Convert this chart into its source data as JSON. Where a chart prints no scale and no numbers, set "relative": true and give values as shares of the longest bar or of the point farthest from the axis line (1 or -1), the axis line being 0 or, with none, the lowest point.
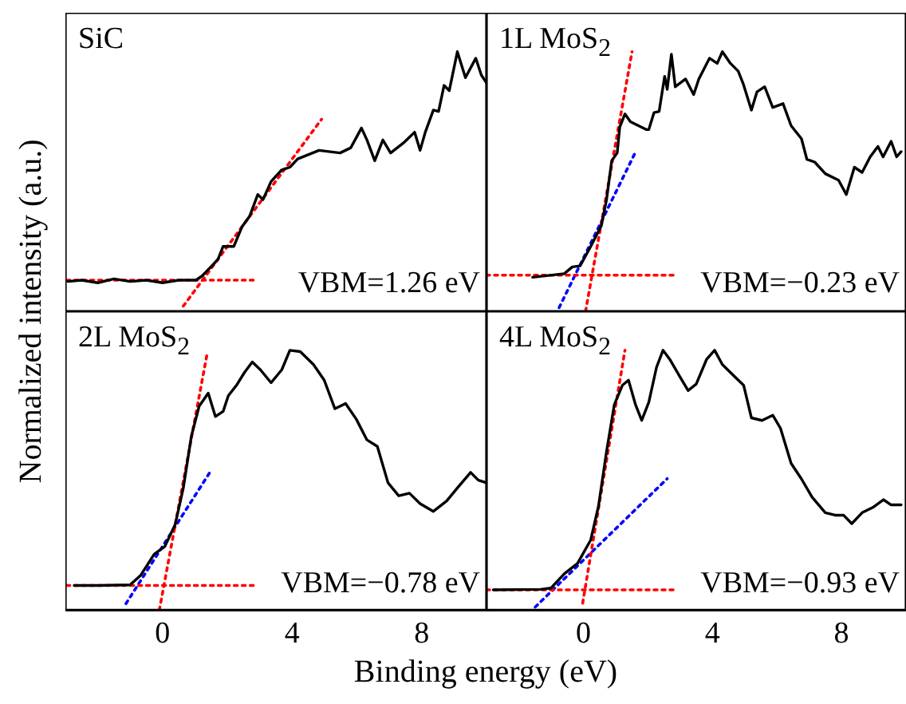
{
  "chart_data": [
    {
      "type": "line",
      "title": "SiC",
      "ylabel": "Normalized intensity (a.u.)",
      "annotations": [
        "VBM=1.26 eV"
      ],
      "relative": true,
      "xlim": [
        -3,
        10
      ],
      "xticks": [
        0,
        4,
        8
      ],
      "tick_labels": false,
      "series": [
        {
          "color": "#000000",
          "x": [
            -2.92,
            -2.5,
            -2.0,
            -1.5,
            -1.0,
            -0.5,
            0,
            0.5,
            1.03,
            1.22,
            1.71,
            1.87,
            2.2,
            2.45,
            2.69,
            2.94,
            3.1,
            3.35,
            3.68,
            3.93,
            4.17,
            4.83,
            5.48,
            5.81,
            6.14,
            6.31,
            6.55,
            6.8,
            7.04,
            7.45,
            7.78,
            7.95,
            8.11,
            8.36,
            8.52,
            8.69,
            8.85,
            9.1,
            9.35,
            9.67,
            9.84,
            10.0
          ],
          "values": [
            0.115,
            0.12,
            0.11,
            0.125,
            0.115,
            0.12,
            0.11,
            0.12,
            0.12,
            0.136,
            0.2,
            0.25,
            0.25,
            0.325,
            0.367,
            0.45,
            0.43,
            0.5,
            0.545,
            0.555,
            0.587,
            0.62,
            0.61,
            0.63,
            0.706,
            0.66,
            0.58,
            0.66,
            0.61,
            0.65,
            0.69,
            0.62,
            0.69,
            0.775,
            0.77,
            0.87,
            0.85,
            1.0,
            0.9,
            0.975,
            0.91,
            0.88
          ]
        },
        {
          "color": "#ff0000",
          "line_style": "dotted",
          "x": [
            -2.96,
            2.94
          ],
          "values": [
            0.12,
            0.12
          ]
        },
        {
          "color": "#ff0000",
          "line_style": "dotted",
          "x": [
            0.64,
            4.91
          ],
          "values": [
            0.02,
            0.74
          ]
        }
      ]
    },
    {
      "type": "line",
      "title": "1L MoS$_{2}$",
      "annotations": [
        "VBM=−0.23 eV"
      ],
      "relative": true,
      "xlim": [
        -3,
        10
      ],
      "xticks": [
        0,
        4,
        8
      ],
      "tick_labels": false,
      "series": [
        {
          "color": "#000000",
          "x": [
            -1.57,
            -0.59,
            -0.34,
            -0.1,
            0.23,
            0.56,
            0.72,
            0.88,
            1.05,
            1.13,
            1.29,
            1.46,
            1.95,
            2.03,
            2.19,
            2.35,
            2.52,
            2.6,
            2.73,
            2.85,
            3.17,
            3.42,
            3.58,
            3.91,
            4.15,
            4.31,
            4.56,
            4.8,
            4.96,
            5.21,
            5.38,
            5.62,
            5.87,
            6.19,
            6.44,
            6.76,
            6.93,
            7.17,
            7.5,
            7.91,
            8.15,
            8.4,
            8.64,
            8.89,
            9.13,
            9.29,
            9.54,
            9.71,
            9.85
          ],
          "values": [
            0.131,
            0.145,
            0.171,
            0.175,
            0.25,
            0.33,
            0.43,
            0.58,
            0.61,
            0.71,
            0.76,
            0.73,
            0.7,
            0.7,
            0.765,
            0.77,
            0.905,
            0.855,
            0.99,
            0.865,
            0.895,
            0.835,
            0.895,
            0.975,
            0.955,
            1.0,
            0.955,
            0.925,
            0.875,
            0.775,
            0.845,
            0.865,
            0.785,
            0.8,
            0.715,
            0.665,
            0.585,
            0.575,
            0.53,
            0.505,
            0.45,
            0.555,
            0.535,
            0.595,
            0.635,
            0.595,
            0.655,
            0.595,
            0.615
          ]
        },
        {
          "color": "#ff0000",
          "line_style": "dotted",
          "x": [
            -3.0,
            2.84
          ],
          "values": [
            0.139,
            0.139
          ]
        },
        {
          "color": "#ff0000",
          "line_style": "dotted",
          "x": [
            0.07,
            1.51
          ],
          "values": [
            0.0,
            1.0
          ]
        },
        {
          "color": "#0000ff",
          "line_style": "dotted",
          "x": [
            -0.75,
            1.62
          ],
          "values": [
            0.014,
            0.614
          ]
        }
      ]
    },
    {
      "type": "line",
      "title": "2L MoS$_{2}$",
      "xlabel": "Binding energy (eV)",
      "annotations": [
        "VBM=−0.78 eV"
      ],
      "relative": true,
      "xlim": [
        -3,
        10
      ],
      "xticks": [
        0,
        4,
        8
      ],
      "tick_labels": "x",
      "series": [
        {
          "color": "#000000",
          "x": [
            -2.73,
            -2.0,
            -1.0,
            -0.67,
            -0.26,
            0.07,
            0.39,
            0.64,
            0.89,
            1.13,
            1.41,
            1.63,
            1.87,
            2.03,
            2.28,
            2.53,
            2.77,
            3.02,
            3.35,
            3.68,
            3.93,
            4.25,
            4.66,
            4.99,
            5.32,
            5.65,
            5.98,
            6.31,
            6.63,
            6.96,
            7.29,
            7.62,
            7.95,
            8.36,
            8.77,
            9.1,
            9.51,
            9.75,
            10.0
          ],
          "values": [
            0.095,
            0.095,
            0.097,
            0.135,
            0.215,
            0.245,
            0.33,
            0.47,
            0.67,
            0.785,
            0.835,
            0.745,
            0.765,
            0.825,
            0.865,
            0.915,
            0.955,
            0.925,
            0.875,
            0.925,
            1.0,
            0.995,
            0.945,
            0.885,
            0.775,
            0.795,
            0.735,
            0.655,
            0.63,
            0.49,
            0.44,
            0.45,
            0.41,
            0.38,
            0.42,
            0.47,
            0.53,
            0.5,
            0.49
          ]
        },
        {
          "color": "#ff0000",
          "line_style": "dotted",
          "x": [
            -2.96,
            2.94
          ],
          "values": [
            0.095,
            0.095
          ]
        },
        {
          "color": "#ff0000",
          "line_style": "dotted",
          "x": [
            -0.1,
            1.38
          ],
          "values": [
            0.0,
            0.99
          ]
        },
        {
          "color": "#0000ff",
          "line_style": "dotted",
          "x": [
            -1.13,
            1.51
          ],
          "values": [
            0.025,
            0.54
          ]
        }
      ]
    },
    {
      "type": "line",
      "title": "4L MoS$_{2}$",
      "annotations": [
        "VBM=−0.93 eV"
      ],
      "relative": true,
      "xlim": [
        -3,
        10
      ],
      "xticks": [
        0,
        4,
        8
      ],
      "tick_labels": "x",
      "series": [
        {
          "color": "#000000",
          "x": [
            -2.79,
            -1.32,
            -1.0,
            -0.59,
            -0.18,
            0.23,
            0.47,
            0.72,
            0.96,
            1.21,
            1.4,
            1.62,
            1.81,
            2.03,
            2.27,
            2.47,
            2.68,
            3.01,
            3.25,
            3.5,
            3.82,
            4.07,
            4.31,
            4.72,
            4.97,
            5.21,
            5.54,
            5.87,
            6.11,
            6.44,
            6.76,
            7.09,
            7.5,
            7.83,
            8.07,
            8.32,
            8.64,
            8.97,
            9.3,
            9.54,
            9.85
          ],
          "values": [
            0.078,
            0.08,
            0.085,
            0.14,
            0.18,
            0.27,
            0.4,
            0.61,
            0.79,
            0.865,
            0.885,
            0.79,
            0.73,
            0.8,
            0.935,
            1.0,
            0.965,
            0.895,
            0.845,
            0.87,
            0.965,
            1.0,
            0.945,
            0.895,
            0.865,
            0.74,
            0.73,
            0.75,
            0.7,
            0.565,
            0.505,
            0.435,
            0.375,
            0.365,
            0.365,
            0.333,
            0.375,
            0.395,
            0.425,
            0.405,
            0.405
          ]
        },
        {
          "color": "#ff0000",
          "line_style": "dotted",
          "x": [
            -3.0,
            2.93
          ],
          "values": [
            0.078,
            0.078
          ]
        },
        {
          "color": "#ff0000",
          "line_style": "dotted",
          "x": [
            -0.02,
            1.29
          ],
          "values": [
            0.027,
            1.0
          ]
        },
        {
          "color": "#0000ff",
          "line_style": "dotted",
          "x": [
            -1.49,
            2.6
          ],
          "values": [
            0.012,
            0.506
          ]
        }
      ]
    }
  ]
}
